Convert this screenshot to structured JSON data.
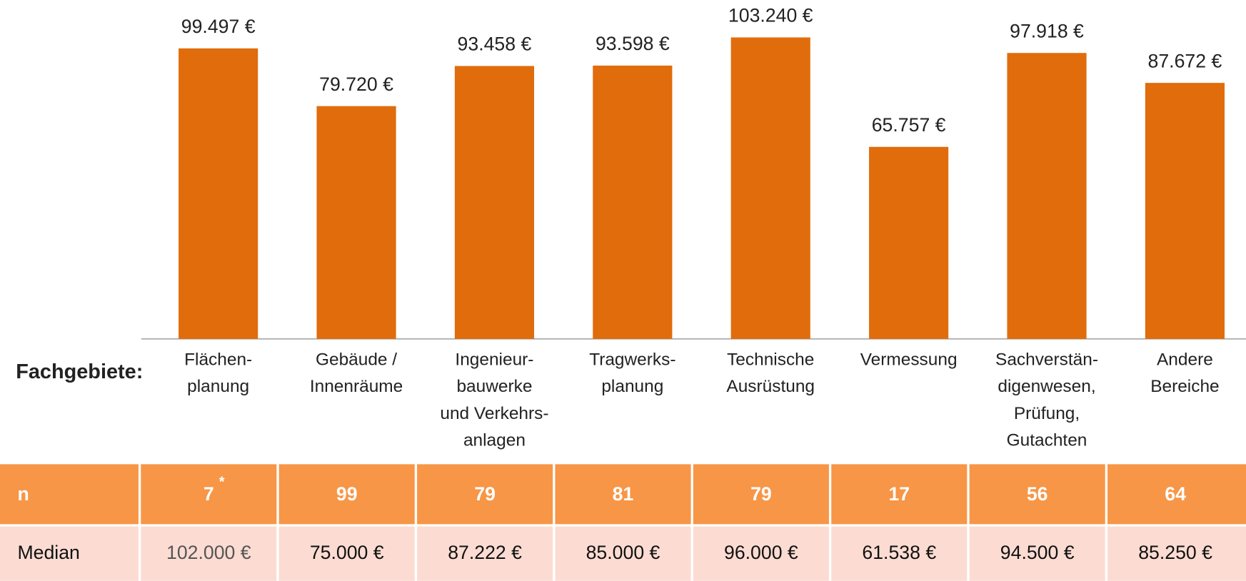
{
  "chart_data": {
    "type": "bar",
    "categories": [
      [
        "Flächen-",
        "planung"
      ],
      [
        "Gebäude /",
        "Innenräume"
      ],
      [
        "Ingenieur-",
        "bauwerke",
        "und Verkehrs-",
        "anlagen"
      ],
      [
        "Tragwerks-",
        "planung"
      ],
      [
        "Technische",
        "Ausrüstung"
      ],
      [
        "Vermessung"
      ],
      [
        "Sachverstän-",
        "digenwesen,",
        "Prüfung,",
        "Gutachten"
      ],
      [
        "Andere",
        "Bereiche"
      ]
    ],
    "values": [
      99497,
      79720,
      93458,
      93598,
      103240,
      65757,
      97918,
      87672
    ],
    "value_labels": [
      "99.497 €",
      "79.720 €",
      "93.458 €",
      "93.598 €",
      "103.240 €",
      "65.757 €",
      "97.918 €",
      "87.672 €"
    ],
    "color": "#e06c0c",
    "category_axis_label": "Fachgebiete:"
  },
  "table": {
    "n_label": "n",
    "n": [
      "7",
      "99",
      "79",
      "81",
      "79",
      "17",
      "56",
      "64"
    ],
    "footnote_marker": "*",
    "median_label": "Median",
    "median": [
      "102.000 €",
      "75.000 €",
      "87.222 €",
      "85.000 €",
      "96.000 €",
      "61.538 €",
      "94.500 €",
      "85.250 €"
    ]
  }
}
